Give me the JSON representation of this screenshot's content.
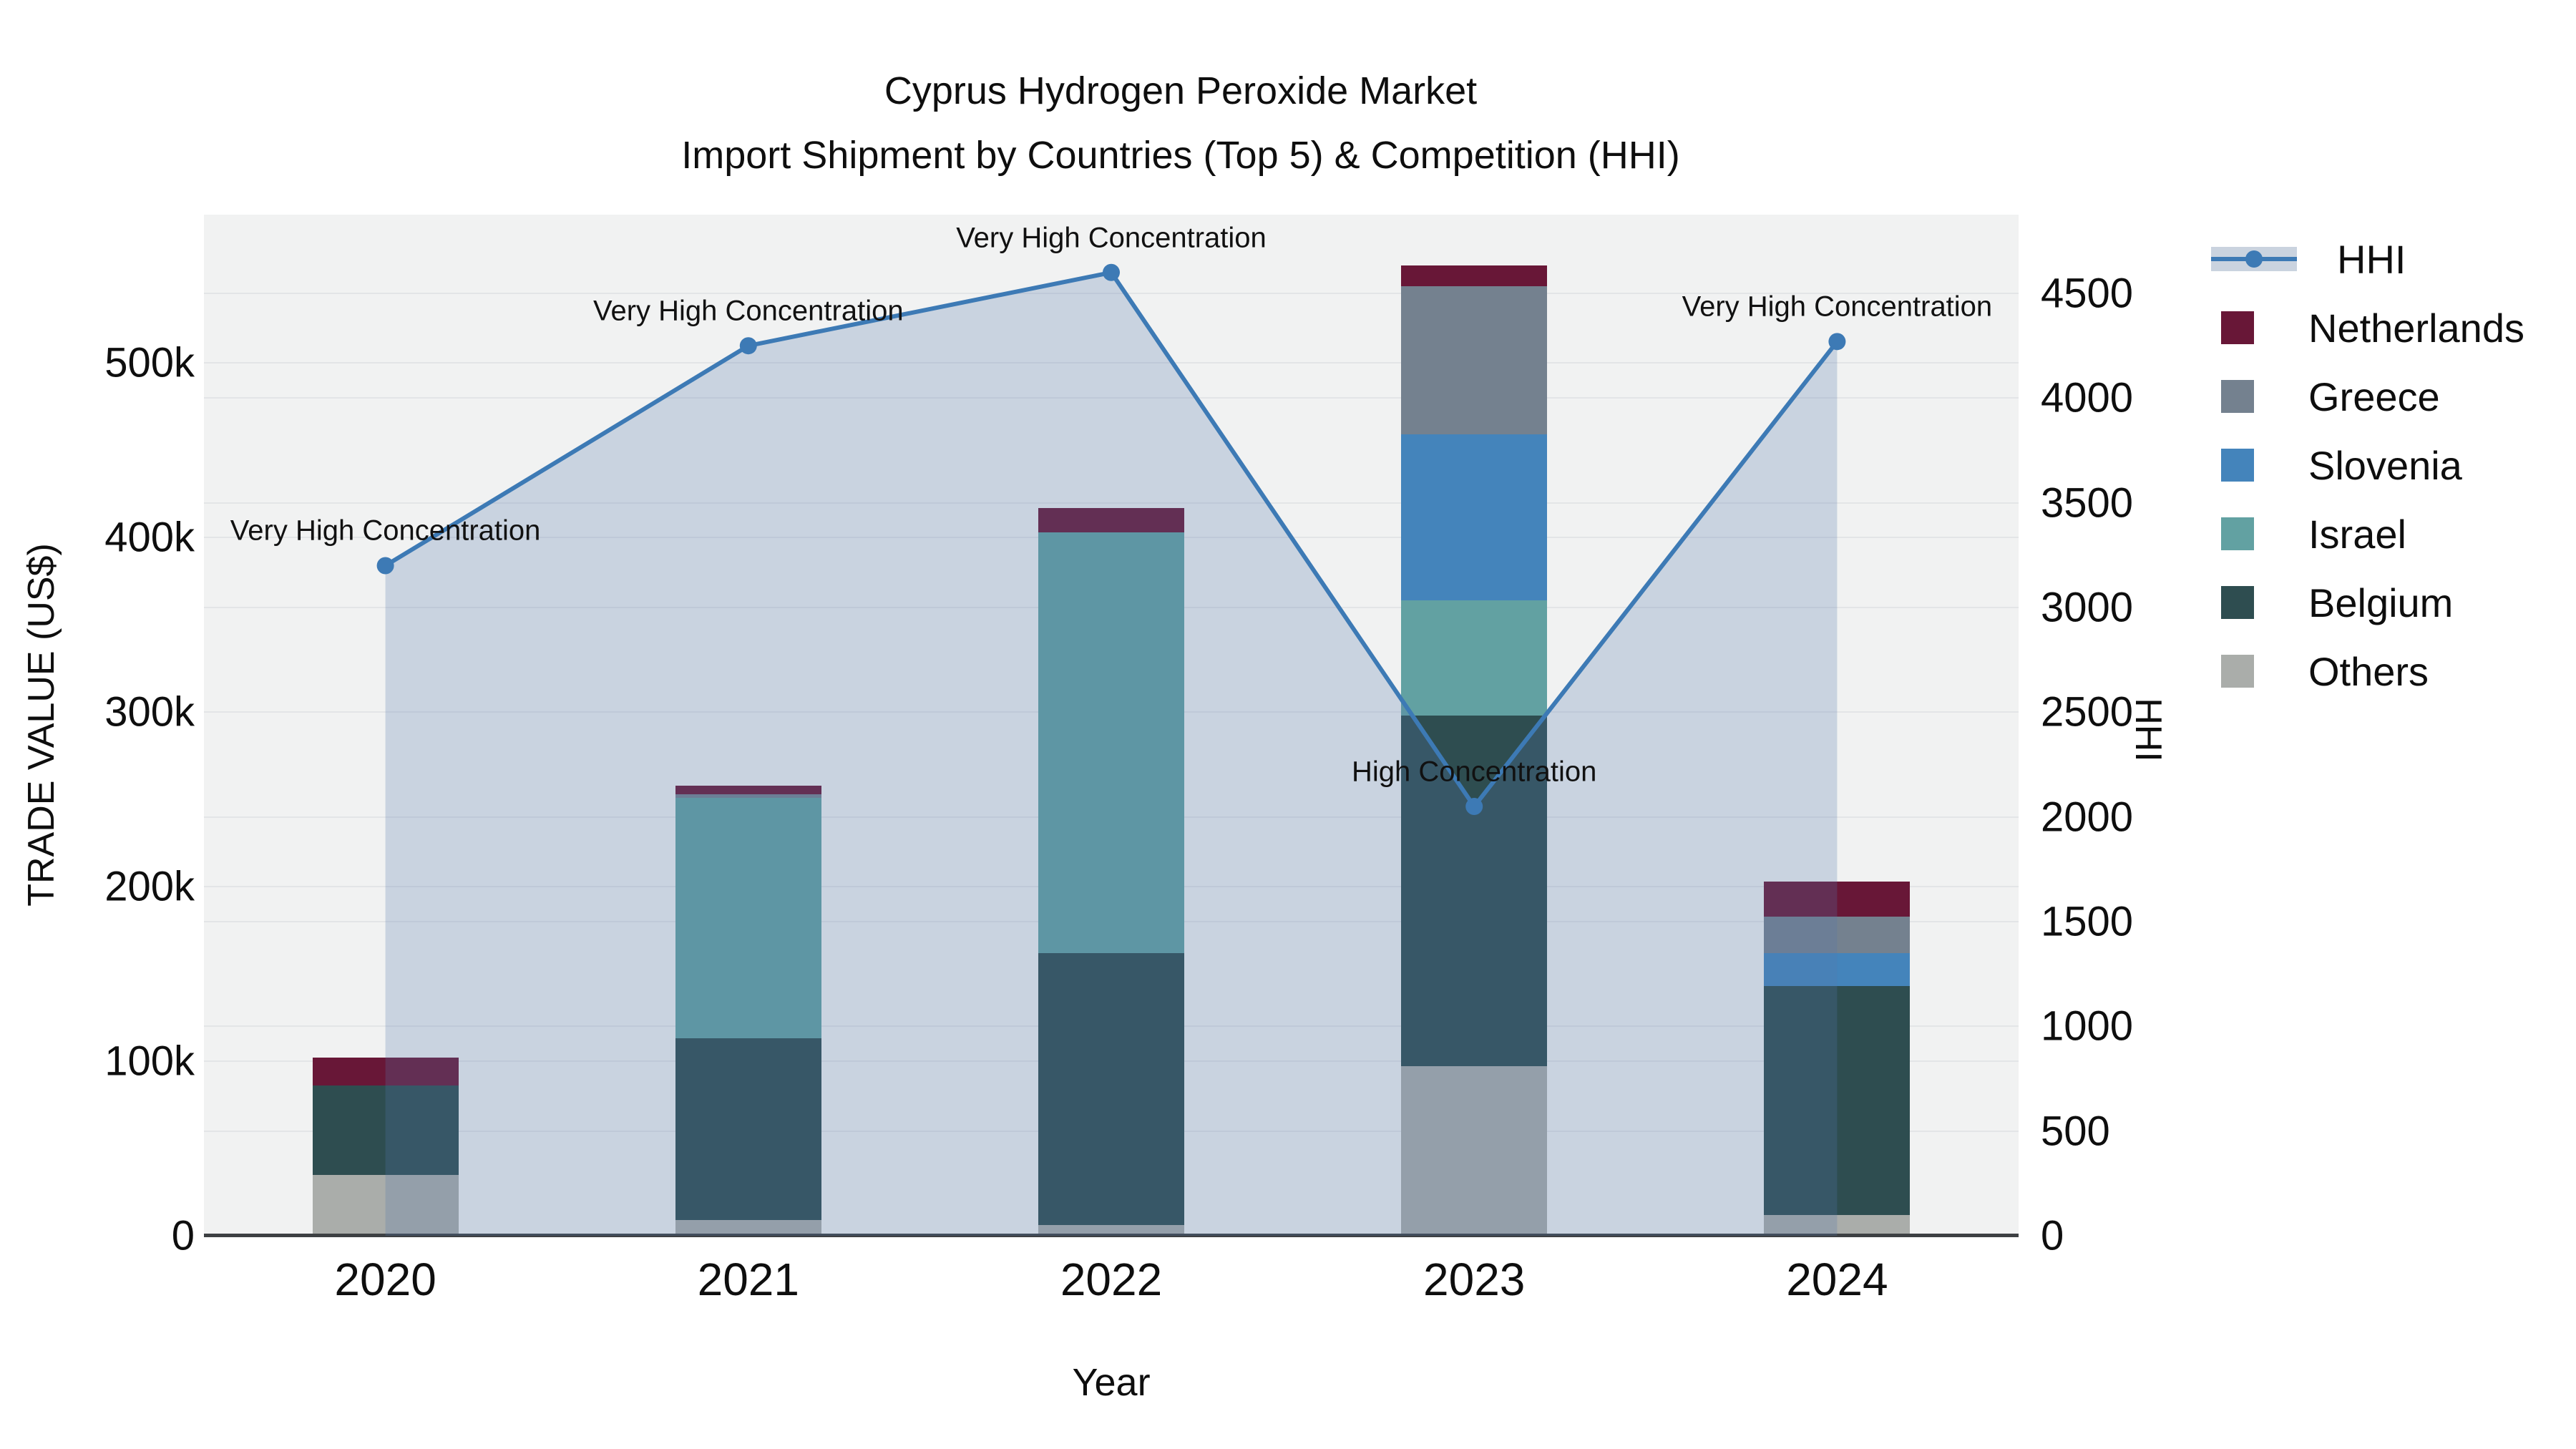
{
  "title": {
    "line1": "Cyprus Hydrogen Peroxide Market",
    "line2": "Import Shipment by Countries (Top 5) & Competition (HHI)"
  },
  "legend": {
    "line_item": "HHI",
    "bar_items": [
      "Netherlands",
      "Greece",
      "Slovenia",
      "Israel",
      "Belgium",
      "Others"
    ]
  },
  "colors": {
    "line": "#3d7ab5",
    "line_fill": "rgba(85,119,170,0.25)",
    "netherlands": "#681737",
    "greece": "#74818f",
    "slovenia": "#4484bb",
    "israel": "#62a1a2",
    "belgium": "#2e4d50",
    "others": "#aaadaa",
    "plot_bg": "#f1f2f2",
    "gridline": "#e3e5e7",
    "axis_line": "#3d4043"
  },
  "chart_data": {
    "type": "combo-stacked-bar-line",
    "x": [
      "2020",
      "2021",
      "2022",
      "2023",
      "2024"
    ],
    "x_label": "Year",
    "y_left": {
      "label": "TRADE VALUE (US$)",
      "tick_labels": [
        "0",
        "100k",
        "200k",
        "300k",
        "400k",
        "500k"
      ],
      "tick_values": [
        0,
        100000,
        200000,
        300000,
        400000,
        500000
      ],
      "max": 585000
    },
    "y_right": {
      "label": "HHI",
      "tick_values": [
        0,
        500,
        1000,
        1500,
        2000,
        2500,
        3000,
        3500,
        4000,
        4500
      ],
      "max": 4876
    },
    "series": [
      {
        "name": "Others",
        "color_key": "others",
        "values": [
          35000,
          9000,
          6000,
          97000,
          12000
        ]
      },
      {
        "name": "Belgium",
        "color_key": "belgium",
        "values": [
          51000,
          104000,
          156000,
          201000,
          131000
        ]
      },
      {
        "name": "Israel",
        "color_key": "israel",
        "values": [
          0,
          138000,
          241000,
          66000,
          0
        ]
      },
      {
        "name": "Slovenia",
        "color_key": "slovenia",
        "values": [
          0,
          0,
          0,
          95000,
          19000
        ]
      },
      {
        "name": "Greece",
        "color_key": "greece",
        "values": [
          0,
          2000,
          0,
          85000,
          21000
        ]
      },
      {
        "name": "Netherlands",
        "color_key": "netherlands",
        "values": [
          16000,
          5000,
          14000,
          12000,
          20000
        ]
      }
    ],
    "line": {
      "name": "HHI",
      "values": [
        3200,
        4250,
        4600,
        2050,
        4270
      ],
      "annotations": [
        "Very High Concentration",
        "Very High Concentration",
        "Very High Concentration",
        "High Concentration",
        "Very High Concentration"
      ]
    }
  }
}
